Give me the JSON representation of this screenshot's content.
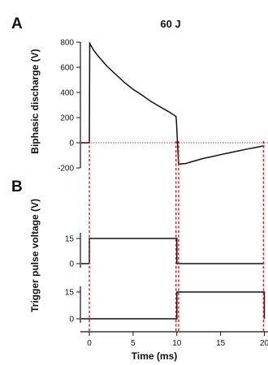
{
  "chart_data": [
    {
      "type": "line",
      "panel": "A",
      "title": "60 J",
      "ylabel": "Biphasic discharge (V)",
      "xlim": [
        -1,
        20
      ],
      "ylim": [
        -200,
        800
      ],
      "yticks": [
        -200,
        0,
        200,
        400,
        600,
        800
      ],
      "zero_line": "dotted",
      "series": [
        {
          "values_x": [
            -1,
            0,
            0.05,
            0.5,
            1,
            2,
            3,
            4,
            5,
            6,
            7,
            8,
            9,
            9.9,
            9.95,
            10.2,
            11,
            12,
            13,
            14,
            15,
            16,
            17,
            18,
            19,
            19.9,
            20
          ],
          "values_y": [
            0,
            0,
            790,
            735,
            690,
            610,
            545,
            480,
            425,
            380,
            330,
            290,
            250,
            210,
            175,
            -170,
            -165,
            -145,
            -125,
            -110,
            -95,
            -80,
            -65,
            -50,
            -38,
            -25,
            -25
          ]
        }
      ]
    },
    {
      "type": "line",
      "panel": "B",
      "ylabel": "Trigger pulse voltage (V)",
      "xlabel": "Time (ms)",
      "xlim": [
        -1,
        20
      ],
      "xticks": [
        0,
        5,
        10,
        15,
        20
      ],
      "xtick_labels": [
        "0",
        "5",
        "10",
        "15",
        "20"
      ],
      "subplots": [
        {
          "ylim": [
            0,
            15
          ],
          "yticks": [
            0,
            15
          ],
          "series": [
            {
              "values_x": [
                -1,
                0,
                0,
                10,
                10,
                20
              ],
              "values_y": [
                0,
                0,
                15,
                15,
                0,
                0
              ]
            }
          ]
        },
        {
          "ylim": [
            0,
            15
          ],
          "yticks": [
            0,
            15
          ],
          "series": [
            {
              "values_x": [
                -1,
                10,
                10,
                20,
                20
              ],
              "values_y": [
                0,
                0,
                15,
                15,
                0
              ]
            }
          ]
        }
      ]
    }
  ],
  "guide_lines_ms": [
    0,
    9.9,
    10.2,
    19.9
  ],
  "colors": {
    "trace": "#111111",
    "guide": "#e8131c"
  }
}
